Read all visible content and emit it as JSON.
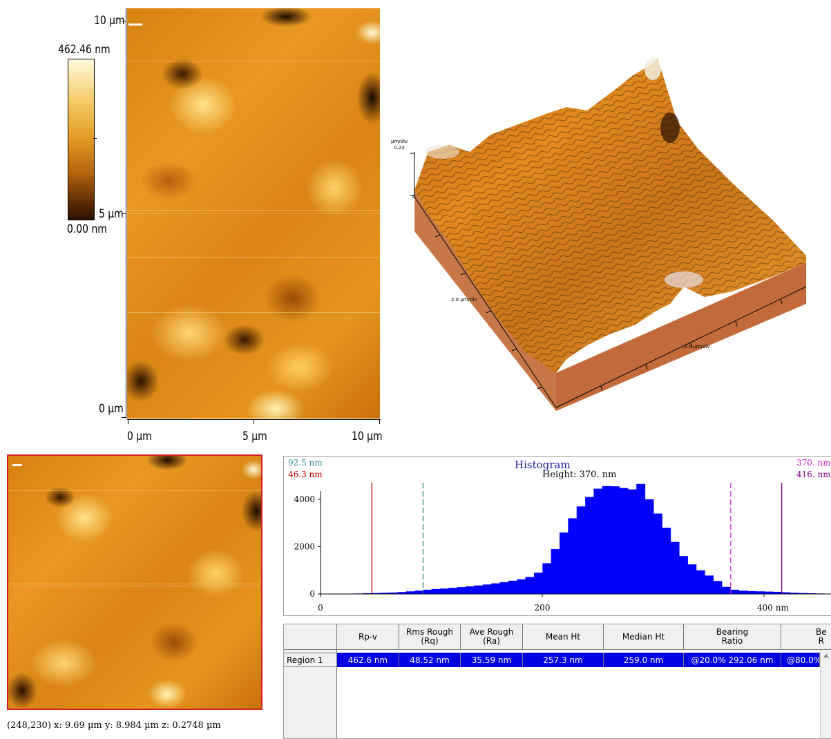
{
  "main_image": {
    "y_axis_labels": [
      "10 µm",
      "5 µm",
      "0 µm"
    ],
    "x_axis_labels": [
      "0 µm",
      "5 µm",
      "10 µm"
    ],
    "colorbar": {
      "max_label": "462.46 nm",
      "min_label": "0.00 nm"
    }
  },
  "view3d": {
    "z_unit": "µm/div",
    "z_max": "0.23",
    "z_zero": "0",
    "x_label": "2.0 µm/div",
    "y_label": "2.0 µm/div"
  },
  "thumbnail": {
    "status": "(248,230)  x: 9.69 µm   y: 8.984 µm  z: 0.2748 µm"
  },
  "histogram": {
    "title": "Histogram",
    "subtitle": "Height: 370. nm",
    "left_cursor_1": "92.5 nm",
    "left_cursor_2": "46.3 nm",
    "right_cursor_1": "370. nm",
    "right_cursor_2": "416. nm",
    "x_ticks": [
      "0",
      "200",
      "400 nm"
    ],
    "y_ticks": [
      "4000",
      "2000",
      "0"
    ],
    "colors": {
      "bars": "#0000ff",
      "red": "#c00000",
      "teal": "#2a8a8a",
      "magenta": "#d020d0",
      "purple": "#800080",
      "blue_text": "#1a1aa0"
    }
  },
  "chart_data": {
    "type": "bar",
    "title": "Histogram",
    "subtitle": "Height: 370. nm",
    "xlim": [
      0,
      460
    ],
    "ylim": [
      0,
      4700
    ],
    "bin_width": 7.7,
    "x": [
      0,
      7.7,
      15.4,
      23.1,
      30.8,
      38.5,
      46.2,
      53.9,
      61.6,
      69.3,
      77,
      84.7,
      92.4,
      100.1,
      107.8,
      115.5,
      123.2,
      130.9,
      138.6,
      146.3,
      154,
      161.7,
      169.4,
      177.1,
      184.8,
      192.5,
      200.2,
      207.9,
      215.6,
      223.3,
      231,
      238.7,
      246.4,
      254.1,
      261.8,
      269.5,
      277.2,
      284.9,
      292.6,
      300.3,
      308,
      315.7,
      323.4,
      331.1,
      338.8,
      346.5,
      354.2,
      361.9,
      369.6,
      377.3,
      385,
      392.7,
      400.4,
      408.1,
      415.8,
      423.5,
      431.2,
      438.9,
      446.6,
      454.3
    ],
    "values": [
      10,
      10,
      10,
      15,
      20,
      30,
      40,
      50,
      60,
      80,
      110,
      140,
      180,
      210,
      230,
      260,
      290,
      320,
      360,
      400,
      450,
      500,
      560,
      620,
      720,
      900,
      1300,
      1900,
      2600,
      3200,
      3700,
      4100,
      4450,
      4560,
      4550,
      4480,
      4420,
      4650,
      4000,
      3400,
      2800,
      2200,
      1600,
      1250,
      1000,
      780,
      550,
      300,
      180,
      140,
      120,
      110,
      100,
      90,
      70,
      50,
      40,
      30,
      20,
      10
    ],
    "cursors": [
      46.3,
      92.5,
      370,
      416
    ]
  },
  "table": {
    "headers": [
      "",
      "Rp-v",
      "Rms Rough\n(Rq)",
      "Ave Rough\n(Ra)",
      "Mean Ht",
      "Median Ht",
      "Bearing\nRatio",
      "Be\nR"
    ],
    "rows": [
      [
        "Region 1",
        "462.6 nm",
        "48.52 nm",
        "35.59 nm",
        "257.3 nm",
        "259.0 nm",
        "@20.0% 292.06 nm",
        "@80.0%"
      ]
    ]
  }
}
